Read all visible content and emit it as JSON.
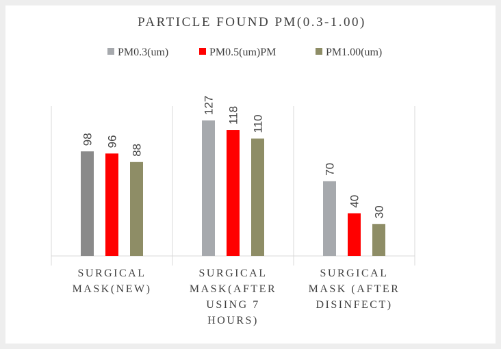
{
  "chart_data": {
    "type": "bar",
    "title": "PARTICLE FOUND PM(0.3-1.00)",
    "categories": [
      [
        "SURGICAL",
        "MASK(NEW)"
      ],
      [
        "SURGICAL",
        "MASK(AFTER",
        "USING 7",
        "HOURS)"
      ],
      [
        "SURGICAL",
        "MASK (AFTER",
        "DISINFECT)"
      ]
    ],
    "series": [
      {
        "name": "PM0.3(um)",
        "color": "#a6a9ad",
        "colors": [
          "#8a8a8a",
          "#a6a9ad",
          "#a6a9ad"
        ],
        "values": [
          98,
          127,
          70
        ]
      },
      {
        "name": "PM0.5(um)PM",
        "color": "#ff0000",
        "values": [
          96,
          118,
          40
        ]
      },
      {
        "name": "PM1.00(um)",
        "color": "#8e8d66",
        "values": [
          88,
          110,
          30
        ]
      }
    ],
    "legend": "top",
    "grid": false
  }
}
